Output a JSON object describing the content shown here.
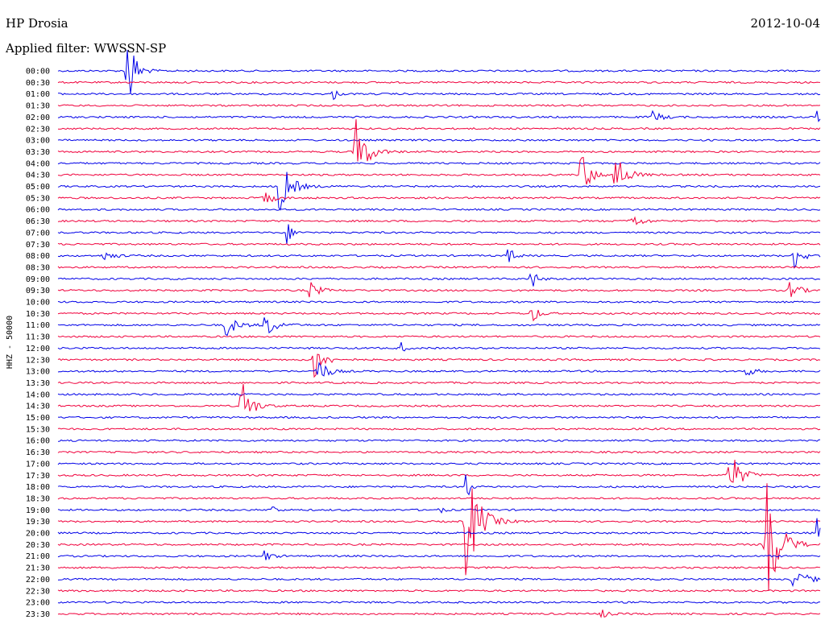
{
  "header": {
    "station": "HP Drosia",
    "date": "2012-10-04",
    "filter_label": "Applied filter:",
    "filter_value": "WWSSN-SP"
  },
  "chart_data": {
    "type": "line",
    "title": "HP Drosia",
    "date": "2012-10-04",
    "filter": "WWSSN-SP",
    "ylabel": "HHZ - 50000",
    "tick_labels": [
      "00:00",
      "00:30",
      "01:00",
      "01:30",
      "02:00",
      "02:30",
      "03:00",
      "03:30",
      "04:00",
      "04:30",
      "05:00",
      "05:30",
      "06:00",
      "06:30",
      "07:00",
      "07:30",
      "08:00",
      "08:30",
      "09:00",
      "09:30",
      "10:00",
      "10:30",
      "11:00",
      "11:30",
      "12:00",
      "12:30",
      "13:00",
      "13:30",
      "14:00",
      "14:30",
      "15:00",
      "15:30",
      "16:00",
      "16:30",
      "17:00",
      "17:30",
      "18:00",
      "18:30",
      "19:00",
      "19:30",
      "20:00",
      "20:30",
      "21:00",
      "21:30",
      "22:00",
      "22:30",
      "23:00",
      "23:30"
    ],
    "series_colors": [
      "#0000e8",
      "#f0003c"
    ],
    "row_minutes": 30,
    "events": [
      {
        "row": 0,
        "pos": 0.09,
        "amp": 75,
        "width": 0.008
      },
      {
        "row": 2,
        "pos": 0.36,
        "amp": 12,
        "width": 0.004
      },
      {
        "row": 4,
        "pos": 0.78,
        "amp": 8,
        "width": 0.01
      },
      {
        "row": 4,
        "pos": 0.995,
        "amp": 18,
        "width": 0.003
      },
      {
        "row": 7,
        "pos": 0.39,
        "amp": 48,
        "width": 0.012
      },
      {
        "row": 9,
        "pos": 0.685,
        "amp": 35,
        "width": 0.01
      },
      {
        "row": 9,
        "pos": 0.73,
        "amp": 30,
        "width": 0.012
      },
      {
        "row": 10,
        "pos": 0.29,
        "amp": 40,
        "width": 0.012
      },
      {
        "row": 11,
        "pos": 0.27,
        "amp": 10,
        "width": 0.01
      },
      {
        "row": 13,
        "pos": 0.75,
        "amp": 10,
        "width": 0.012
      },
      {
        "row": 14,
        "pos": 0.3,
        "amp": 15,
        "width": 0.006
      },
      {
        "row": 16,
        "pos": 0.06,
        "amp": 8,
        "width": 0.01
      },
      {
        "row": 16,
        "pos": 0.59,
        "amp": 15,
        "width": 0.006
      },
      {
        "row": 16,
        "pos": 0.965,
        "amp": 18,
        "width": 0.01
      },
      {
        "row": 18,
        "pos": 0.62,
        "amp": 18,
        "width": 0.006
      },
      {
        "row": 19,
        "pos": 0.33,
        "amp": 12,
        "width": 0.01
      },
      {
        "row": 19,
        "pos": 0.96,
        "amp": 20,
        "width": 0.008
      },
      {
        "row": 21,
        "pos": 0.62,
        "amp": 15,
        "width": 0.008
      },
      {
        "row": 22,
        "pos": 0.22,
        "amp": 15,
        "width": 0.012
      },
      {
        "row": 22,
        "pos": 0.27,
        "amp": 18,
        "width": 0.012
      },
      {
        "row": 24,
        "pos": 0.45,
        "amp": 10,
        "width": 0.004
      },
      {
        "row": 25,
        "pos": 0.335,
        "amp": 30,
        "width": 0.01
      },
      {
        "row": 26,
        "pos": 0.34,
        "amp": 20,
        "width": 0.01
      },
      {
        "row": 26,
        "pos": 0.9,
        "amp": 8,
        "width": 0.01
      },
      {
        "row": 29,
        "pos": 0.24,
        "amp": 42,
        "width": 0.01
      },
      {
        "row": 35,
        "pos": 0.88,
        "amp": 35,
        "width": 0.012
      },
      {
        "row": 36,
        "pos": 0.535,
        "amp": 48,
        "width": 0.003
      },
      {
        "row": 38,
        "pos": 0.28,
        "amp": 12,
        "width": 0.004
      },
      {
        "row": 38,
        "pos": 0.5,
        "amp": 8,
        "width": 0.004
      },
      {
        "row": 39,
        "pos": 0.535,
        "amp": 80,
        "width": 0.014
      },
      {
        "row": 40,
        "pos": 0.995,
        "amp": 25,
        "width": 0.004
      },
      {
        "row": 41,
        "pos": 0.93,
        "amp": 80,
        "width": 0.014
      },
      {
        "row": 42,
        "pos": 0.27,
        "amp": 8,
        "width": 0.008
      },
      {
        "row": 44,
        "pos": 0.965,
        "amp": 15,
        "width": 0.014
      },
      {
        "row": 47,
        "pos": 0.71,
        "amp": 12,
        "width": 0.006
      }
    ]
  }
}
